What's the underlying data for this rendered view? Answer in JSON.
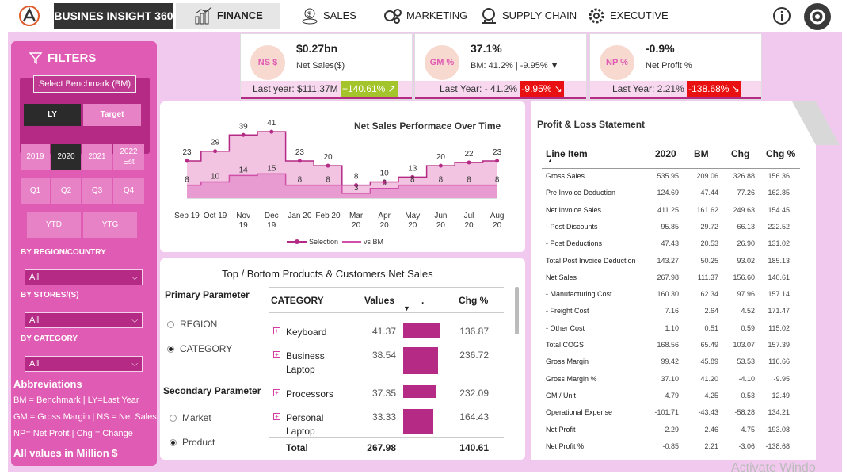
{
  "nav": {
    "brand": "BUSINES INSIGHT 360",
    "tabs": [
      "FINANCE",
      "SALES",
      "MARKETING",
      "SUPPLY CHAIN",
      "EXECUTIVE"
    ]
  },
  "filters": {
    "title": "FILTERS",
    "benchmark_label": "Select Benchmark (BM)",
    "benchmark_options": [
      "LY",
      "Target"
    ],
    "years": [
      "2019",
      "2020",
      "2021",
      "2022 Est"
    ],
    "quarters": [
      "Q1",
      "Q2",
      "Q3",
      "Q4"
    ],
    "periods": [
      "YTD",
      "YTG"
    ],
    "region_label": "BY REGION/COUNTRY",
    "region_value": "All",
    "stores_label": "BY STORES/(S)",
    "stores_value": "All",
    "category_label": "BY CATEGORY",
    "category_value": "All"
  },
  "abbreviations": {
    "title": "Abbreviations",
    "lines": [
      "BM = Benchmark | LY=Last Year",
      "GM = Gross Margin | NS = Net Sales",
      "NP= Net Profit | Chg = Change"
    ],
    "footer": "All values in Million $"
  },
  "kpis": [
    {
      "badge": "NS $",
      "value": "$0.27bn",
      "sub": "Net Sales($)",
      "foot": "Last year: $111.37M",
      "change": "+140.61% ↗"
    },
    {
      "badge": "GM %",
      "value": "37.1%",
      "sub": "BM: 41.2% | -9.95% ▼",
      "foot": "Last Year: - 41.2%",
      "change": "-9.95% ↘"
    },
    {
      "badge": "NP %",
      "value": "-0.9%",
      "sub": "Net Profit %",
      "foot": "Last Year: 2.21%",
      "change": "-138.68% ↘"
    }
  ],
  "colors": {
    "accent": "#b42a85",
    "pink": "#e05bb3",
    "bg": "#f2c9ee",
    "green": "#a4c42c",
    "red": "#e81010"
  },
  "chart_data": {
    "type": "area",
    "title": "Net Sales Performace Over Time",
    "categories": [
      "Sep 19",
      "Oct 19",
      "Nov 19",
      "Dec 19",
      "Jan 20",
      "Feb 20",
      "Mar 20",
      "Apr 20",
      "May 20",
      "Jun 20",
      "Jul 20",
      "Aug 20"
    ],
    "series": [
      {
        "name": "Selection",
        "values": [
          23,
          29,
          39,
          41,
          23,
          20,
          8,
          10,
          13,
          20,
          22,
          23
        ]
      },
      {
        "name": "vs BM",
        "values": [
          8,
          10,
          14,
          15,
          8,
          8,
          3,
          6,
          8,
          8,
          8,
          8
        ]
      }
    ],
    "legend": [
      "Selection",
      "vs BM"
    ]
  },
  "topbottom": {
    "title": "Top / Bottom Products & Customers Net Sales",
    "primary_label": "Primary Parameter",
    "primary_options": [
      "REGION",
      "CATEGORY"
    ],
    "secondary_label": "Secondary Parameter",
    "secondary_options": [
      "Market",
      "Product"
    ],
    "headers": [
      "CATEGORY",
      "Values",
      ".",
      "Chg %"
    ],
    "rows": [
      {
        "name": "Keyboard",
        "value": "41.37",
        "chg": "136.87",
        "v": 41.37
      },
      {
        "name": "Business Laptop",
        "value": "38.54",
        "chg": "236.72",
        "v": 38.54
      },
      {
        "name": "Processors",
        "value": "37.35",
        "chg": "232.09",
        "v": 37.35
      },
      {
        "name": "Personal Laptop",
        "value": "33.33",
        "chg": "164.43",
        "v": 33.33
      }
    ],
    "total_label": "Total",
    "total_value": "267.98",
    "total_chg": "140.61"
  },
  "pl": {
    "title": "Profit & Loss Statement",
    "headers": [
      "Line Item",
      "2020",
      "BM",
      "Chg",
      "Chg %"
    ],
    "rows": [
      [
        "Gross Sales",
        "535.95",
        "209.06",
        "326.88",
        "156.36"
      ],
      [
        "Pre Invoice Deduction",
        "124.69",
        "47.44",
        "77.26",
        "162.85"
      ],
      [
        "Net Invoice Sales",
        "411.25",
        "161.62",
        "249.63",
        "154.45"
      ],
      [
        "- Post Discounts",
        "95.85",
        "29.72",
        "66.13",
        "222.52"
      ],
      [
        "- Post Deductions",
        "47.43",
        "20.53",
        "26.90",
        "131.02"
      ],
      [
        "Total Post Invoice Deduction",
        "143.27",
        "50.25",
        "93.02",
        "185.13"
      ],
      [
        "Net Sales",
        "267.98",
        "111.37",
        "156.60",
        "140.61"
      ],
      [
        "- Manufacturing Cost",
        "160.30",
        "62.34",
        "97.96",
        "157.14"
      ],
      [
        "- Freight Cost",
        "7.16",
        "2.64",
        "4.52",
        "171.47"
      ],
      [
        "- Other Cost",
        "1.10",
        "0.51",
        "0.59",
        "115.02"
      ],
      [
        "Total COGS",
        "168.56",
        "65.49",
        "103.07",
        "157.39"
      ],
      [
        "Gross Margin",
        "99.42",
        "45.89",
        "53.53",
        "116.66"
      ],
      [
        "Gross Margin %",
        "37.10",
        "41.20",
        "-4.10",
        "-9.95"
      ],
      [
        "GM / Unit",
        "4.79",
        "4.25",
        "0.53",
        "12.49"
      ],
      [
        "Operational Expense",
        "-101.71",
        "-43.43",
        "-58.28",
        "134.21"
      ],
      [
        "Net Profit",
        "-2.29",
        "2.46",
        "-4.75",
        "-193.08"
      ],
      [
        "Net Profit %",
        "-0.85",
        "2.21",
        "-3.06",
        "-138.68"
      ]
    ]
  },
  "watermark": "Activate Windo"
}
